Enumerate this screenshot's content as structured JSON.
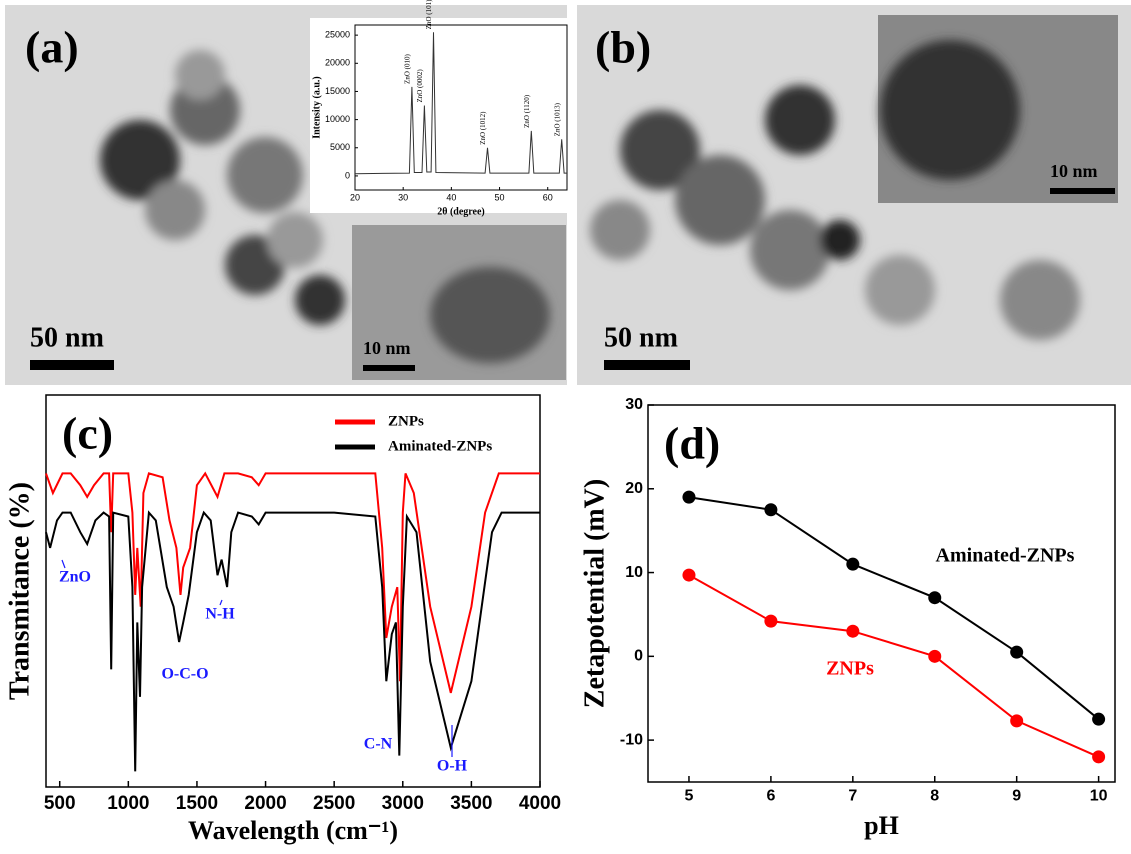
{
  "images": [
    {
      "label": "(a)",
      "scale_bar": "50 nm",
      "inset_scale_bar": "10 nm"
    },
    {
      "label": "(b)",
      "scale_bar": "50 nm",
      "inset_scale_bar": "10 nm"
    }
  ],
  "chart_data": [
    {
      "type": "line",
      "xlabel": "2θ (degree)",
      "ylabel": "Intensity (a.u.)",
      "xlim": [
        20,
        64
      ],
      "xticks": [
        20,
        30,
        40,
        50,
        60
      ],
      "ylim": [
        -2500,
        26800
      ],
      "yticks": [
        0,
        5000,
        10000,
        15000,
        20000,
        25000
      ],
      "peak_labels": [
        "ZnO (010)",
        "ZnO (0002)",
        "ZnO (101)",
        "ZnO (1012)",
        "ZnO (1120)",
        "ZnO (1013)"
      ],
      "series": [
        {
          "color": "#333333",
          "x": [
            20,
            31.3,
            31.8,
            32.3,
            33.9,
            34.4,
            34.9,
            35.8,
            36.3,
            36.8,
            47.0,
            47.5,
            48.0,
            56.1,
            56.6,
            57.1,
            62.4,
            62.9,
            63.4,
            64
          ],
          "values": [
            400,
            500,
            15800,
            600,
            600,
            12500,
            700,
            700,
            25500,
            600,
            500,
            5000,
            500,
            500,
            8000,
            500,
            500,
            6500,
            500,
            500
          ]
        }
      ]
    },
    {
      "type": "line",
      "panel": "(c)",
      "xlabel": "Wavelength (cm⁻¹)",
      "ylabel": "Transmitance (%)",
      "xlim": [
        400,
        4000
      ],
      "xticks": [
        500,
        1000,
        1500,
        2000,
        2500,
        3000,
        3500,
        4000
      ],
      "ylim": [
        0,
        100
      ],
      "annotations": [
        "ZnO",
        "N-H",
        "O-C-O",
        "C-N",
        "O-H"
      ],
      "series": [
        {
          "name": "ZNPs",
          "color": "#ff0000",
          "x": [
            400,
            450,
            520,
            580,
            650,
            700,
            750,
            820,
            860,
            875,
            890,
            950,
            1000,
            1030,
            1050,
            1065,
            1090,
            1110,
            1150,
            1250,
            1300,
            1350,
            1380,
            1400,
            1450,
            1500,
            1560,
            1650,
            1700,
            1800,
            1900,
            1950,
            2000,
            2500,
            2800,
            2850,
            2880,
            2920,
            2960,
            2980,
            3000,
            3020,
            3080,
            3200,
            3350,
            3500,
            3600,
            3700,
            3750,
            4000
          ],
          "values": [
            80,
            75,
            80,
            80,
            77,
            74,
            77,
            80,
            80,
            65,
            80,
            80,
            80,
            70,
            49,
            61,
            46,
            75,
            80,
            79,
            68,
            61,
            49,
            56,
            61,
            77,
            80,
            74,
            80,
            80,
            79,
            77,
            80,
            80,
            80,
            61,
            38,
            46,
            51,
            27,
            70,
            80,
            75,
            46,
            24,
            46,
            70,
            80,
            80,
            80
          ]
        },
        {
          "name": "Aminated-ZNPs",
          "color": "#000000",
          "x": [
            400,
            430,
            480,
            520,
            580,
            650,
            700,
            760,
            820,
            860,
            875,
            890,
            1000,
            1030,
            1050,
            1065,
            1085,
            1100,
            1150,
            1200,
            1280,
            1330,
            1370,
            1400,
            1440,
            1500,
            1550,
            1600,
            1650,
            1680,
            1720,
            1750,
            1800,
            1900,
            1950,
            2000,
            2500,
            2800,
            2850,
            2880,
            2920,
            2950,
            2975,
            3000,
            3030,
            3100,
            3200,
            3350,
            3500,
            3650,
            3720,
            4000
          ],
          "values": [
            65,
            61,
            68,
            70,
            70,
            65,
            62,
            68,
            70,
            69,
            30,
            70,
            69,
            51,
            4,
            42,
            23,
            51,
            70,
            68,
            51,
            46,
            37,
            42,
            49,
            65,
            70,
            68,
            54,
            58,
            51,
            65,
            70,
            69,
            67,
            70,
            70,
            69,
            51,
            27,
            39,
            42,
            8,
            46,
            69,
            65,
            32,
            10,
            27,
            65,
            70,
            70
          ]
        }
      ]
    },
    {
      "type": "line",
      "panel": "(d)",
      "xlabel": "pH",
      "ylabel": "Zetapotential (mV)",
      "x": [
        5,
        6,
        7,
        8,
        9,
        10
      ],
      "xlim": [
        4.5,
        10.2
      ],
      "xticks": [
        5,
        6,
        7,
        8,
        9,
        10
      ],
      "ylim": [
        -15,
        30
      ],
      "yticks": [
        -10,
        0,
        10,
        20,
        30
      ],
      "markers": true,
      "series": [
        {
          "name": "Aminated-ZNPs",
          "color": "#000000",
          "values": [
            19,
            17.5,
            11,
            7,
            0.5,
            -7.5
          ]
        },
        {
          "name": "ZNPs",
          "color": "#ff0000",
          "values": [
            9.7,
            4.2,
            3,
            0,
            -7.7,
            -12
          ]
        }
      ]
    }
  ]
}
